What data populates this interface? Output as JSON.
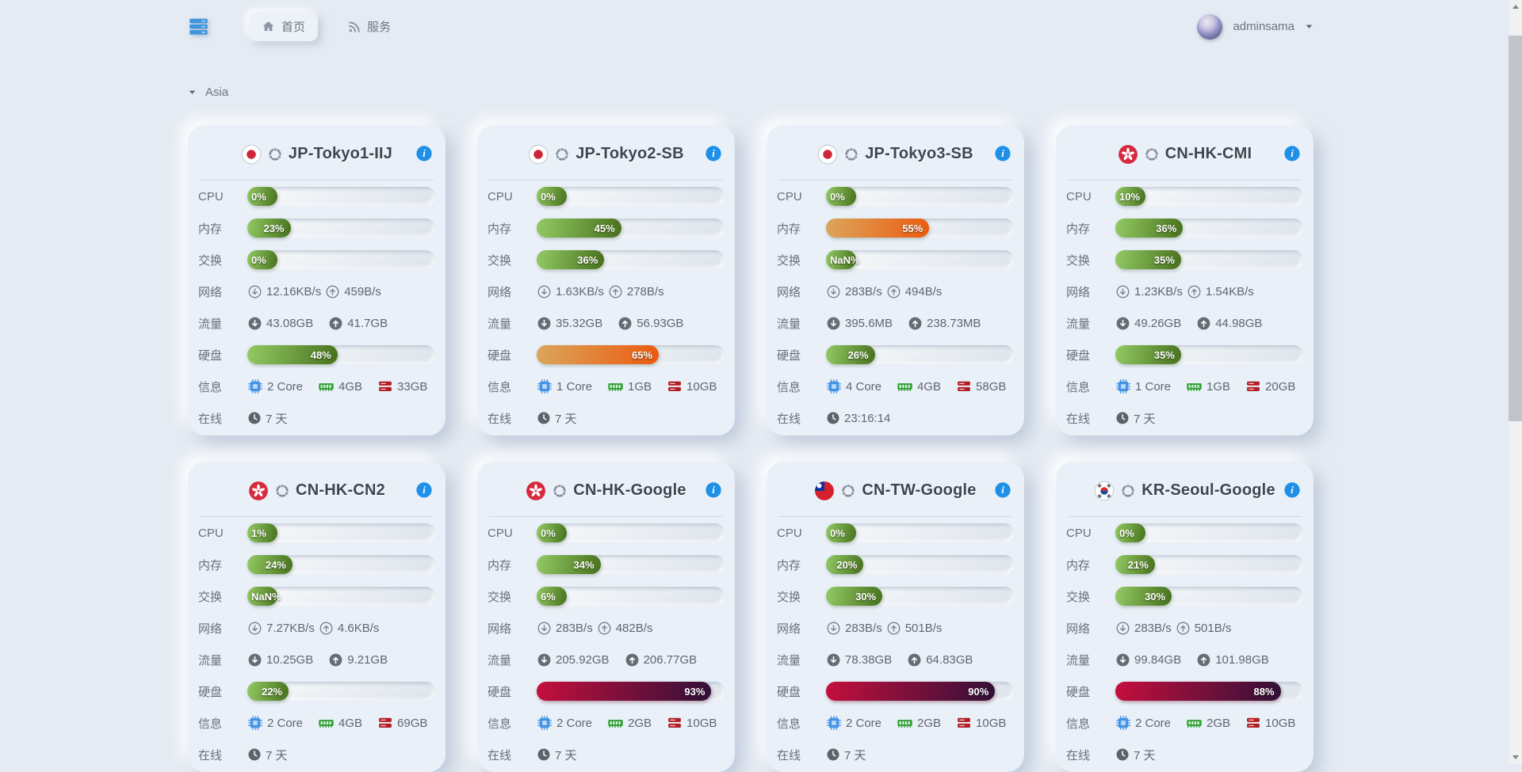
{
  "header": {
    "logo_icon": "server-stack-icon",
    "tabs": [
      {
        "label": "首页",
        "icon": "home-icon",
        "active": true
      },
      {
        "label": "服务",
        "icon": "rss-icon",
        "active": false
      }
    ],
    "user": {
      "name": "adminsama",
      "avatar": "anime-avatar",
      "caret_icon": "caret-down-icon"
    }
  },
  "section": {
    "label": "Asia",
    "caret_icon": "caret-down-icon"
  },
  "row_labels": {
    "cpu": "CPU",
    "memory": "内存",
    "swap": "交换",
    "network": "网络",
    "traffic": "流量",
    "disk": "硬盘",
    "info": "信息",
    "online": "在线"
  },
  "icons": {
    "network_down": "circle-arrow-down-outline",
    "network_up": "circle-arrow-up-outline",
    "traffic_down": "circle-arrow-down-filled",
    "traffic_up": "circle-arrow-up-filled",
    "info_cpu": "chip-icon",
    "info_ram": "memory-icon",
    "info_storage": "hdd-icon",
    "online": "clock-icon",
    "card_info": "info-circle-icon",
    "os": "ubuntu-icon"
  },
  "colors": {
    "page_bg": "#e5ebf3",
    "card_bg": "#eaf0f8",
    "accent_blue": "#1e90e8",
    "bar_green": [
      "#93ca64",
      "#47711c"
    ],
    "bar_orange": [
      "#dba65b",
      "#ec5a0f"
    ],
    "bar_red": [
      "#c50f3e",
      "#301038"
    ],
    "title_text": "#3f4551",
    "body_text": "#646b76"
  },
  "servers": [
    {
      "name": "JP-Tokyo1-IIJ",
      "flag": "jp",
      "os": "ubuntu",
      "cpu": {
        "label": "0%",
        "pct": 0,
        "level": "green"
      },
      "memory": {
        "label": "23%",
        "pct": 23,
        "level": "green"
      },
      "swap": {
        "label": "0%",
        "pct": 0,
        "level": "green"
      },
      "disk": {
        "label": "48%",
        "pct": 48,
        "level": "green"
      },
      "network": {
        "down": "12.16KB/s",
        "up": "459B/s"
      },
      "traffic": {
        "down": "43.08GB",
        "up": "41.7GB"
      },
      "info": {
        "cores": "2 Core",
        "ram": "4GB",
        "storage": "33GB"
      },
      "online": "7 天"
    },
    {
      "name": "JP-Tokyo2-SB",
      "flag": "jp",
      "os": "ubuntu",
      "cpu": {
        "label": "0%",
        "pct": 0,
        "level": "green"
      },
      "memory": {
        "label": "45%",
        "pct": 45,
        "level": "green"
      },
      "swap": {
        "label": "36%",
        "pct": 36,
        "level": "green"
      },
      "disk": {
        "label": "65%",
        "pct": 65,
        "level": "orange"
      },
      "network": {
        "down": "1.63KB/s",
        "up": "278B/s"
      },
      "traffic": {
        "down": "35.32GB",
        "up": "56.93GB"
      },
      "info": {
        "cores": "1 Core",
        "ram": "1GB",
        "storage": "10GB"
      },
      "online": "7 天"
    },
    {
      "name": "JP-Tokyo3-SB",
      "flag": "jp",
      "os": "ubuntu",
      "cpu": {
        "label": "0%",
        "pct": 0,
        "level": "green"
      },
      "memory": {
        "label": "55%",
        "pct": 55,
        "level": "orange"
      },
      "swap": {
        "label": "NaN%",
        "pct": 0,
        "level": "green"
      },
      "disk": {
        "label": "26%",
        "pct": 26,
        "level": "green"
      },
      "network": {
        "down": "283B/s",
        "up": "494B/s"
      },
      "traffic": {
        "down": "395.6MB",
        "up": "238.73MB"
      },
      "info": {
        "cores": "4 Core",
        "ram": "4GB",
        "storage": "58GB"
      },
      "online": "23:16:14"
    },
    {
      "name": "CN-HK-CMI",
      "flag": "hk",
      "os": "ubuntu",
      "cpu": {
        "label": "10%",
        "pct": 10,
        "level": "green"
      },
      "memory": {
        "label": "36%",
        "pct": 36,
        "level": "green"
      },
      "swap": {
        "label": "35%",
        "pct": 35,
        "level": "green"
      },
      "disk": {
        "label": "35%",
        "pct": 35,
        "level": "green"
      },
      "network": {
        "down": "1.23KB/s",
        "up": "1.54KB/s"
      },
      "traffic": {
        "down": "49.26GB",
        "up": "44.98GB"
      },
      "info": {
        "cores": "1 Core",
        "ram": "1GB",
        "storage": "20GB"
      },
      "online": "7 天"
    },
    {
      "name": "CN-HK-CN2",
      "flag": "hk",
      "os": "ubuntu",
      "cpu": {
        "label": "1%",
        "pct": 1,
        "level": "green"
      },
      "memory": {
        "label": "24%",
        "pct": 24,
        "level": "green"
      },
      "swap": {
        "label": "NaN%",
        "pct": 0,
        "level": "green"
      },
      "disk": {
        "label": "22%",
        "pct": 22,
        "level": "green"
      },
      "network": {
        "down": "7.27KB/s",
        "up": "4.6KB/s"
      },
      "traffic": {
        "down": "10.25GB",
        "up": "9.21GB"
      },
      "info": {
        "cores": "2 Core",
        "ram": "4GB",
        "storage": "69GB"
      },
      "online": "7 天"
    },
    {
      "name": "CN-HK-Google",
      "flag": "hk",
      "os": "ubuntu",
      "cpu": {
        "label": "0%",
        "pct": 0,
        "level": "green"
      },
      "memory": {
        "label": "34%",
        "pct": 34,
        "level": "green"
      },
      "swap": {
        "label": "6%",
        "pct": 6,
        "level": "green"
      },
      "disk": {
        "label": "93%",
        "pct": 93,
        "level": "red"
      },
      "network": {
        "down": "283B/s",
        "up": "482B/s"
      },
      "traffic": {
        "down": "205.92GB",
        "up": "206.77GB"
      },
      "info": {
        "cores": "2 Core",
        "ram": "2GB",
        "storage": "10GB"
      },
      "online": "7 天"
    },
    {
      "name": "CN-TW-Google",
      "flag": "tw",
      "os": "ubuntu",
      "cpu": {
        "label": "0%",
        "pct": 0,
        "level": "green"
      },
      "memory": {
        "label": "20%",
        "pct": 20,
        "level": "green"
      },
      "swap": {
        "label": "30%",
        "pct": 30,
        "level": "green"
      },
      "disk": {
        "label": "90%",
        "pct": 90,
        "level": "red"
      },
      "network": {
        "down": "283B/s",
        "up": "501B/s"
      },
      "traffic": {
        "down": "78.38GB",
        "up": "64.83GB"
      },
      "info": {
        "cores": "2 Core",
        "ram": "2GB",
        "storage": "10GB"
      },
      "online": "7 天"
    },
    {
      "name": "KR-Seoul-Google",
      "flag": "kr",
      "os": "ubuntu",
      "cpu": {
        "label": "0%",
        "pct": 0,
        "level": "green"
      },
      "memory": {
        "label": "21%",
        "pct": 21,
        "level": "green"
      },
      "swap": {
        "label": "30%",
        "pct": 30,
        "level": "green"
      },
      "disk": {
        "label": "88%",
        "pct": 88,
        "level": "red"
      },
      "network": {
        "down": "283B/s",
        "up": "501B/s"
      },
      "traffic": {
        "down": "99.84GB",
        "up": "101.98GB"
      },
      "info": {
        "cores": "2 Core",
        "ram": "2GB",
        "storage": "10GB"
      },
      "online": "7 天"
    }
  ]
}
